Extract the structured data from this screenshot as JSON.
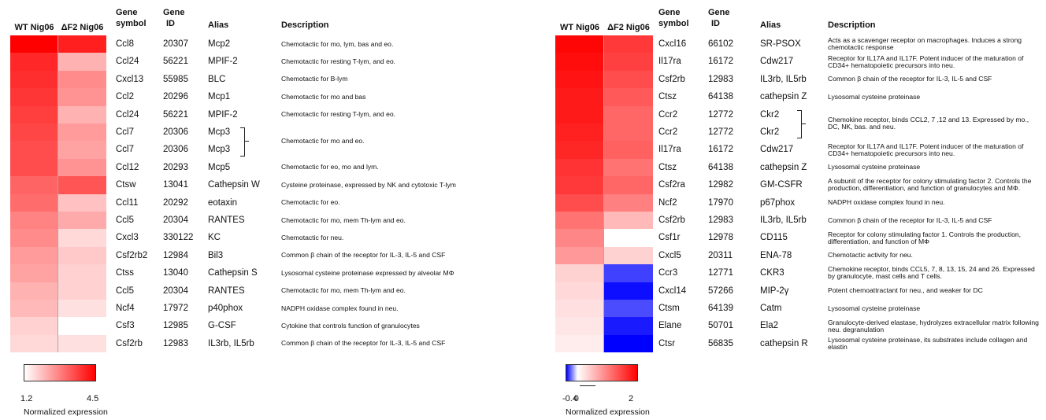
{
  "headers": {
    "wt": "WT Nig06",
    "df2": "ΔF2 Nig06",
    "gene_symbol_1": "Gene",
    "gene_symbol_2": "symbol",
    "gene_id_1": "Gene",
    "gene_id_2": "ID",
    "alias": "Alias",
    "description": "Description"
  },
  "legend_left": {
    "min_label": "1.2",
    "max_label": "4.5",
    "title": "Normalized expression",
    "low_color": "#ffffff",
    "high_color": "#ff0000"
  },
  "legend_right": {
    "min_label": "-0.4",
    "zero_label": "0",
    "max_label": "2",
    "title": "Normalized expression",
    "low_color": "#0000ff",
    "mid_color": "#ffffff",
    "high_color": "#ff0000"
  },
  "chart_data": [
    {
      "type": "heatmap",
      "columns": [
        "WT Nig06",
        "ΔF2 Nig06"
      ],
      "scale": {
        "min": 1.2,
        "max": 4.5,
        "colors": [
          "#ffffff",
          "#ff0000"
        ]
      },
      "rows": [
        {
          "symbol": "Ccl8",
          "gene_id": "20307",
          "alias": "Mcp2",
          "description": "Chemotactic for mo, lym, bas and eo.",
          "wt": 4.5,
          "df2": 4.1
        },
        {
          "symbol": "Ccl24",
          "gene_id": "56221",
          "alias": "MPIF-2",
          "description": "Chemotactic for resting T-lym, and eo.",
          "wt": 4.0,
          "df2": 2.2
        },
        {
          "symbol": "Cxcl13",
          "gene_id": "55985",
          "alias": "BLC",
          "description": "Chemotactic for B-lym",
          "wt": 3.9,
          "df2": 2.7
        },
        {
          "symbol": "Ccl2",
          "gene_id": "20296",
          "alias": "Mcp1",
          "description": "Chemotactic for mo and bas",
          "wt": 3.8,
          "df2": 2.6
        },
        {
          "symbol": "Ccl24",
          "gene_id": "56221",
          "alias": "MPIF-2",
          "description": "Chemotactic for resting T-lym, and eo.",
          "wt": 3.7,
          "df2": 2.2
        },
        {
          "symbol": "Ccl7",
          "gene_id": "20306",
          "alias": "Mcp3",
          "description": "",
          "wt": 3.6,
          "df2": 2.5
        },
        {
          "symbol": "Ccl7",
          "gene_id": "20306",
          "alias": "Mcp3",
          "description": "",
          "wt": 3.5,
          "df2": 2.4
        },
        {
          "symbol": "Ccl12",
          "gene_id": "20293",
          "alias": "Mcp5",
          "description": "Chemotactic for eo, mo and lym.",
          "wt": 3.5,
          "df2": 2.6
        },
        {
          "symbol": "Ctsw",
          "gene_id": "13041",
          "alias": "Cathepsin W",
          "description": "Cysteine proteinase, expressed by NK and cytotoxic T-lym",
          "wt": 3.2,
          "df2": 3.4
        },
        {
          "symbol": "Ccl11",
          "gene_id": "20292",
          "alias": "eotaxin",
          "description": "Chemotactic for eo.",
          "wt": 3.1,
          "df2": 2.0
        },
        {
          "symbol": "Ccl5",
          "gene_id": "20304",
          "alias": "RANTES",
          "description": "Chemotactic for mo, mem Th-lym and eo.",
          "wt": 2.8,
          "df2": 2.3
        },
        {
          "symbol": "Cxcl3",
          "gene_id": "330122",
          "alias": "KC",
          "description": "Chemotactic for neu.",
          "wt": 2.7,
          "df2": 1.7
        },
        {
          "symbol": "Csf2rb2",
          "gene_id": "12984",
          "alias": "Bil3",
          "description": "Common β chain of the receptor for IL-3, IL-5 and CSF",
          "wt": 2.5,
          "df2": 1.9
        },
        {
          "symbol": "Ctss",
          "gene_id": "13040",
          "alias": "Cathepsin S",
          "description": "Lysosomal cysteine proteinase expressed by alveolar MΦ",
          "wt": 2.4,
          "df2": 1.8
        },
        {
          "symbol": "Ccl5",
          "gene_id": "20304",
          "alias": "RANTES",
          "description": "Chemotactic for mo, mem Th-lym and eo.",
          "wt": 2.2,
          "df2": 1.8
        },
        {
          "symbol": "Ncf4",
          "gene_id": "17972",
          "alias": "p40phox",
          "description": "NADPH oxidase complex found in neu.",
          "wt": 2.1,
          "df2": 1.6
        },
        {
          "symbol": "Csf3",
          "gene_id": "12985",
          "alias": "G-CSF",
          "description": "Cytokine that controls function of granulocytes",
          "wt": 1.8,
          "df2": 1.2
        },
        {
          "symbol": "Csf2rb",
          "gene_id": "12983",
          "alias": "IL3rb, IL5rb",
          "description": "Common β chain of the receptor for IL-3, IL-5 and CSF",
          "wt": 1.7,
          "df2": 1.6
        }
      ],
      "group_description": "Chemotactic for mo and eo."
    },
    {
      "type": "heatmap",
      "columns": [
        "WT Nig06",
        "ΔF2 Nig06"
      ],
      "scale": {
        "min": -0.4,
        "mid": 0,
        "max": 2,
        "colors": [
          "#0000ff",
          "#ffffff",
          "#ff0000"
        ]
      },
      "rows": [
        {
          "symbol": "Cxcl16",
          "gene_id": "66102",
          "alias": "SR-PSOX",
          "description": "Acts as a scavenger receptor on macrophages. Induces a strong chemotactic response",
          "wt": 1.95,
          "df2": 1.55
        },
        {
          "symbol": "Il17ra",
          "gene_id": "16172",
          "alias": "Cdw217",
          "description": "Receptor for IL17A and IL17F. Potent inducer of the maturation of CD34+ hematopoietic precursors into neu.",
          "wt": 1.9,
          "df2": 1.5
        },
        {
          "symbol": "Csf2rb",
          "gene_id": "12983",
          "alias": "IL3rb, IL5rb",
          "description": "Common β chain of the receptor for IL-3, IL-5 and CSF",
          "wt": 1.85,
          "df2": 1.4
        },
        {
          "symbol": "Ctsz",
          "gene_id": "64138",
          "alias": "cathepsin Z",
          "description": "Lysosomal cysteine proteinase",
          "wt": 1.8,
          "df2": 1.3
        },
        {
          "symbol": "Ccr2",
          "gene_id": "12772",
          "alias": "Ckr2",
          "description": "",
          "wt": 1.8,
          "df2": 1.2
        },
        {
          "symbol": "Ccr2",
          "gene_id": "12772",
          "alias": "Ckr2",
          "description": "",
          "wt": 1.75,
          "df2": 1.2
        },
        {
          "symbol": "Il17ra",
          "gene_id": "16172",
          "alias": "Cdw217",
          "description": "Receptor for IL17A and IL17F. Potent inducer of the maturation of CD34+ hematopoietic precursors into neu.",
          "wt": 1.7,
          "df2": 1.25
        },
        {
          "symbol": "Ctsz",
          "gene_id": "64138",
          "alias": "cathepsin Z",
          "description": "Lysosomal cysteine proteinase",
          "wt": 1.6,
          "df2": 1.1
        },
        {
          "symbol": "Csf2ra",
          "gene_id": "12982",
          "alias": "GM-CSFR",
          "description": "A subunit of the receptor for colony stimulating factor 2. Controls the production, differentiation, and function of granulocytes and MΦ.",
          "wt": 1.55,
          "df2": 1.2
        },
        {
          "symbol": "Ncf2",
          "gene_id": "17970",
          "alias": "p67phox",
          "description": "NADPH oxidase complex found in neu.",
          "wt": 1.4,
          "df2": 1.0
        },
        {
          "symbol": "Csf2rb",
          "gene_id": "12983",
          "alias": "IL3rb, IL5rb",
          "description": "Common β chain of the receptor for IL-3, IL-5 and CSF",
          "wt": 1.1,
          "df2": 0.55
        },
        {
          "symbol": "Csf1r",
          "gene_id": "12978",
          "alias": "CD115",
          "description": "Receptor for colony stimulating factor 1. Controls the production, differentiation, and function of MΦ",
          "wt": 0.95,
          "df2": 0.0
        },
        {
          "symbol": "Cxcl5",
          "gene_id": "20311",
          "alias": "ENA-78",
          "description": "Chemotactic activity for neu.",
          "wt": 0.8,
          "df2": 0.35
        },
        {
          "symbol": "Ccr3",
          "gene_id": "12771",
          "alias": "CKR3",
          "description": "Chemokine receptor, binds CCL5, 7, 8, 13, 15, 24 and 26. Expressed by granulocyte, mast cells and T cells.",
          "wt": 0.35,
          "df2": -0.3
        },
        {
          "symbol": "Cxcl14",
          "gene_id": "57266",
          "alias": "MIP-2γ",
          "description": "Potent chemoattractant for neu., and weaker for DC",
          "wt": 0.3,
          "df2": -0.38
        },
        {
          "symbol": "Ctsm",
          "gene_id": "64139",
          "alias": "Catm",
          "description": "Lysosomal cysteine proteinase",
          "wt": 0.25,
          "df2": -0.28
        },
        {
          "symbol": "Elane",
          "gene_id": "50701",
          "alias": "Ela2",
          "description": "Granulocyte-derived elastase, hydrolyzes extracellular matrix following neu. degranulation",
          "wt": 0.2,
          "df2": -0.36
        },
        {
          "symbol": "Ctsr",
          "gene_id": "56835",
          "alias": "cathepsin R",
          "description": "Lysosomal cysteine proteinase, its substrates include collagen and elastin",
          "wt": 0.15,
          "df2": -0.4
        }
      ],
      "group_description": "Chemokine receptor, binds CCL2, 7 ,12 and 13. Expressed by mo., DC, NK, bas. and neu."
    }
  ]
}
